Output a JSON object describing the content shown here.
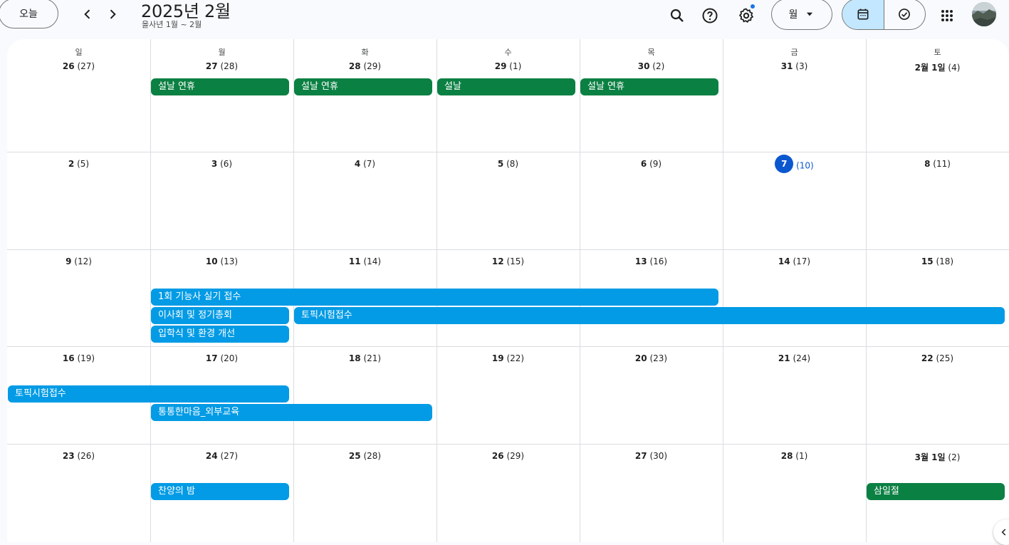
{
  "header": {
    "today_label": "오늘",
    "title": "2025년 2월",
    "subtitle": "을사년 1월 ~ 2월",
    "view_label": "월",
    "icons": {
      "prev": "chevron-left-icon",
      "next": "chevron-right-icon",
      "search": "search-icon",
      "help": "help-icon",
      "settings": "gear-icon",
      "calendar": "calendar-icon",
      "tasks": "task-check-icon",
      "apps": "apps-grid-icon"
    },
    "accent_color": "#0b57d0"
  },
  "weekdays": [
    "일",
    "월",
    "화",
    "수",
    "목",
    "금",
    "토"
  ],
  "weeks": [
    [
      {
        "day": "26",
        "lunar": "(27)"
      },
      {
        "day": "27",
        "lunar": "(28)"
      },
      {
        "day": "28",
        "lunar": "(29)"
      },
      {
        "day": "29",
        "lunar": "(1)"
      },
      {
        "day": "30",
        "lunar": "(2)"
      },
      {
        "day": "31",
        "lunar": "(3)"
      },
      {
        "day": "2월 1일",
        "lunar": "(4)"
      }
    ],
    [
      {
        "day": "2",
        "lunar": "(5)"
      },
      {
        "day": "3",
        "lunar": "(6)"
      },
      {
        "day": "4",
        "lunar": "(7)"
      },
      {
        "day": "5",
        "lunar": "(8)"
      },
      {
        "day": "6",
        "lunar": "(9)"
      },
      {
        "day": "7",
        "lunar": "(10)",
        "today": true
      },
      {
        "day": "8",
        "lunar": "(11)"
      }
    ],
    [
      {
        "day": "9",
        "lunar": "(12)"
      },
      {
        "day": "10",
        "lunar": "(13)"
      },
      {
        "day": "11",
        "lunar": "(14)"
      },
      {
        "day": "12",
        "lunar": "(15)"
      },
      {
        "day": "13",
        "lunar": "(16)"
      },
      {
        "day": "14",
        "lunar": "(17)"
      },
      {
        "day": "15",
        "lunar": "(18)"
      }
    ],
    [
      {
        "day": "16",
        "lunar": "(19)"
      },
      {
        "day": "17",
        "lunar": "(20)"
      },
      {
        "day": "18",
        "lunar": "(21)"
      },
      {
        "day": "19",
        "lunar": "(22)"
      },
      {
        "day": "20",
        "lunar": "(23)"
      },
      {
        "day": "21",
        "lunar": "(24)"
      },
      {
        "day": "22",
        "lunar": "(25)"
      }
    ],
    [
      {
        "day": "23",
        "lunar": "(26)"
      },
      {
        "day": "24",
        "lunar": "(27)"
      },
      {
        "day": "25",
        "lunar": "(28)"
      },
      {
        "day": "26",
        "lunar": "(29)"
      },
      {
        "day": "27",
        "lunar": "(30)"
      },
      {
        "day": "28",
        "lunar": "(1)"
      },
      {
        "day": "3월 1일",
        "lunar": "(2)"
      }
    ]
  ],
  "events": [
    {
      "title": "설날 연휴",
      "week": 0,
      "start_col": 1,
      "span": 1,
      "lane": 0,
      "color": "#0b8043"
    },
    {
      "title": "설날 연휴",
      "week": 0,
      "start_col": 2,
      "span": 1,
      "lane": 0,
      "color": "#0b8043"
    },
    {
      "title": "설날",
      "week": 0,
      "start_col": 3,
      "span": 1,
      "lane": 0,
      "color": "#0b8043"
    },
    {
      "title": "설날 연휴",
      "week": 0,
      "start_col": 4,
      "span": 1,
      "lane": 0,
      "color": "#0b8043"
    },
    {
      "title": "1회 기능사 실기 접수",
      "week": 2,
      "start_col": 1,
      "span": 4,
      "lane": 0,
      "color": "#039be5"
    },
    {
      "title": "이사회 및 정기총회",
      "week": 2,
      "start_col": 1,
      "span": 1,
      "lane": 1,
      "color": "#039be5"
    },
    {
      "title": "토픽시험접수",
      "week": 2,
      "start_col": 2,
      "span": 5,
      "lane": 1,
      "color": "#039be5"
    },
    {
      "title": "입학식 및 환경 개선",
      "week": 2,
      "start_col": 1,
      "span": 1,
      "lane": 2,
      "color": "#039be5"
    },
    {
      "title": "토픽시험접수",
      "week": 3,
      "start_col": 0,
      "span": 2,
      "lane": 0,
      "color": "#039be5"
    },
    {
      "title": "통통한마음_외부교육",
      "week": 3,
      "start_col": 1,
      "span": 2,
      "lane": 1,
      "color": "#039be5"
    },
    {
      "title": "찬양의 밤",
      "week": 4,
      "start_col": 1,
      "span": 1,
      "lane": 0,
      "color": "#039be5"
    },
    {
      "title": "삼일절",
      "week": 4,
      "start_col": 6,
      "span": 1,
      "lane": 0,
      "color": "#0b8043"
    }
  ]
}
